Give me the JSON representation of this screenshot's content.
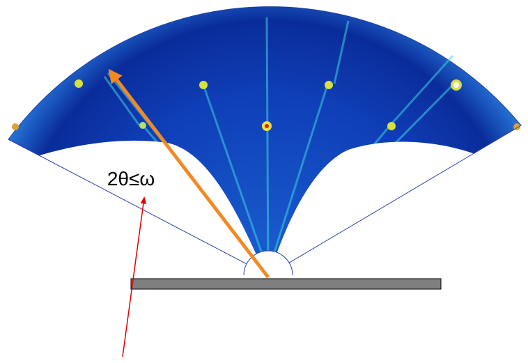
{
  "annotation": {
    "label": "2θ≤ω"
  }
}
